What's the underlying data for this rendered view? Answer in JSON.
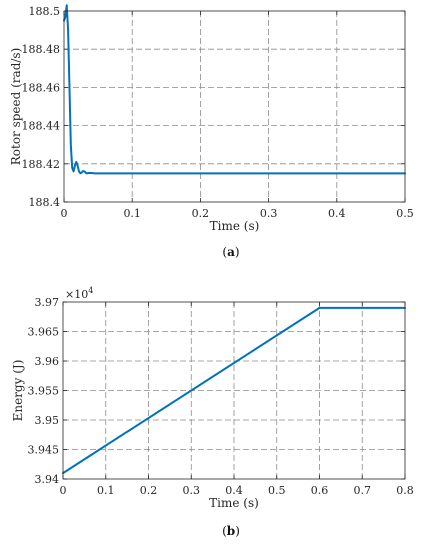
{
  "colors": {
    "series": "#0072BD",
    "axis": "#262626",
    "grid": "#8c8c8c"
  },
  "chart_data": [
    {
      "type": "line",
      "caption_bold": "a",
      "xlabel": "Time (s)",
      "ylabel": "Rotor speed (rad/s)",
      "xlim": [
        0,
        0.5
      ],
      "ylim": [
        188.4,
        188.5
      ],
      "xticks": [
        0,
        0.1,
        0.2,
        0.3,
        0.4,
        0.5
      ],
      "xtick_labels": [
        "0",
        "0.1",
        "0.2",
        "0.3",
        "0.4",
        "0.5"
      ],
      "yticks": [
        188.4,
        188.42,
        188.44,
        188.46,
        188.48,
        188.5
      ],
      "ytick_labels": [
        "188.4",
        "188.42",
        "188.44",
        "188.46",
        "188.48",
        "188.5"
      ],
      "grid": true,
      "series": [
        {
          "x": [
            0,
            0.002,
            0.004,
            0.006,
            0.008,
            0.01,
            0.012,
            0.014,
            0.016,
            0.018,
            0.02,
            0.022,
            0.024,
            0.026,
            0.028,
            0.03,
            0.033,
            0.036,
            0.04,
            0.045,
            0.05,
            0.06,
            0.1,
            0.2,
            0.3,
            0.4,
            0.5
          ],
          "y": [
            188.495,
            188.497,
            188.503,
            188.49,
            188.46,
            188.43,
            188.418,
            188.416,
            188.419,
            188.421,
            188.419,
            188.416,
            188.415,
            188.4155,
            188.4162,
            188.416,
            188.415,
            188.4152,
            188.4152,
            188.415,
            188.415,
            188.415,
            188.415,
            188.415,
            188.415,
            188.415,
            188.415
          ]
        }
      ]
    },
    {
      "type": "line",
      "caption_bold": "b",
      "xlabel": "Time (s)",
      "ylabel": "Energy (J)",
      "exponent_base": "×10",
      "exponent_power": "4",
      "xlim": [
        0,
        0.8
      ],
      "ylim": [
        3.94,
        3.97
      ],
      "xticks": [
        0,
        0.1,
        0.2,
        0.3,
        0.4,
        0.5,
        0.6,
        0.7,
        0.8
      ],
      "xtick_labels": [
        "0",
        "0.1",
        "0.2",
        "0.3",
        "0.4",
        "0.5",
        "0.6",
        "0.7",
        "0.8"
      ],
      "yticks": [
        3.94,
        3.945,
        3.95,
        3.955,
        3.96,
        3.965,
        3.97
      ],
      "ytick_labels": [
        "3.94",
        "3.945",
        "3.95",
        "3.955",
        "3.96",
        "3.965",
        "3.97"
      ],
      "grid": true,
      "series": [
        {
          "x": [
            0,
            0.6,
            0.8
          ],
          "y": [
            3.941,
            3.969,
            3.969
          ]
        }
      ]
    }
  ]
}
